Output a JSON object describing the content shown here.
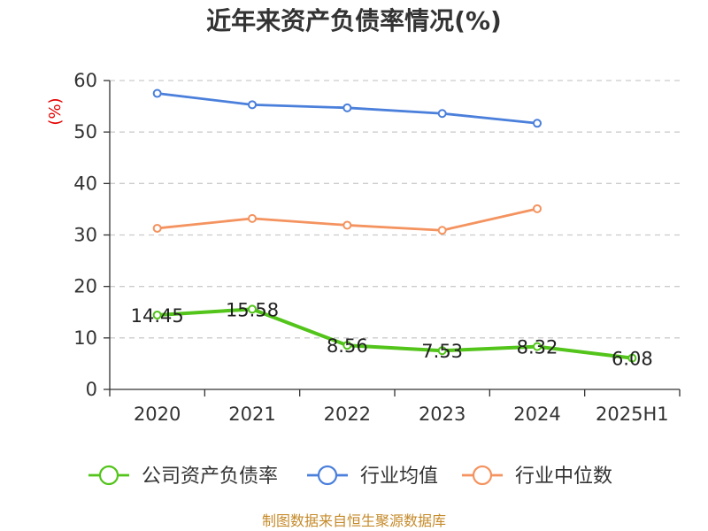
{
  "chart_data": {
    "type": "line",
    "title": "近年来资产负债率情况(%)",
    "ylabel": "(%)",
    "xlabel": "",
    "categories": [
      "2020",
      "2021",
      "2022",
      "2023",
      "2024",
      "2025H1"
    ],
    "ylim": [
      0,
      60
    ],
    "yticks": [
      0,
      10,
      20,
      30,
      40,
      50,
      60
    ],
    "grid": true,
    "legend_position": "bottom",
    "series": [
      {
        "name": "公司资产负债率",
        "color": "#52c41a",
        "values": [
          14.45,
          15.58,
          8.56,
          7.53,
          8.32,
          6.08
        ],
        "labels": [
          "14.45",
          "15.58",
          "8.56",
          "7.53",
          "8.32",
          "6.08"
        ]
      },
      {
        "name": "行业均值",
        "color": "#4a7fdb",
        "values": [
          57.5,
          55.3,
          54.7,
          53.6,
          51.7,
          null
        ]
      },
      {
        "name": "行业中位数",
        "color": "#f4935f",
        "values": [
          31.3,
          33.2,
          31.9,
          30.9,
          35.1,
          null
        ]
      }
    ]
  },
  "source": "制图数据来自恒生聚源数据库"
}
